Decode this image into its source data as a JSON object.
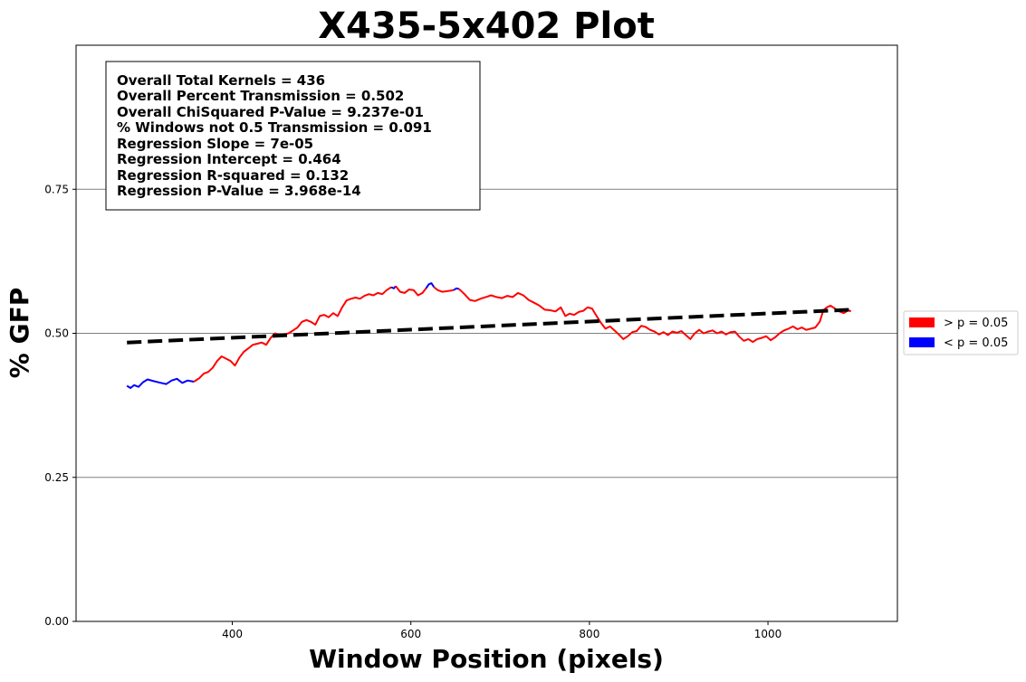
{
  "chart_data": {
    "type": "line",
    "title": "X435-5x402 Plot",
    "xlabel": "Window Position (pixels)",
    "ylabel": "% GFP",
    "xlim": [
      225,
      1145
    ],
    "ylim": [
      0,
      1.0
    ],
    "x_ticks": [
      400,
      600,
      800,
      1000
    ],
    "y_ticks": [
      0.0,
      0.25,
      0.5,
      0.75
    ],
    "x_tick_labels": [
      "400",
      "600",
      "800",
      "1000"
    ],
    "y_tick_labels": [
      "0.00",
      "0.25",
      "0.50",
      "0.75"
    ],
    "y_gridlines": [
      0.25,
      0.5,
      0.75
    ],
    "legend_position": "outside right",
    "legend": [
      {
        "label": "> p = 0.05",
        "color": "#ff0000"
      },
      {
        "label": "< p = 0.05",
        "color": "#0000ff"
      }
    ],
    "stats_box": [
      "Overall Total Kernels = 436",
      "Overall Percent Transmission = 0.502",
      "Overall ChiSquared P-Value = 9.237e-01",
      "% Windows not 0.5 Transmission = 0.091",
      "Regression Slope = 7e-05",
      "Regression Intercept = 0.464",
      "Regression R-squared = 0.132",
      "Regression P-Value = 3.968e-14"
    ],
    "regression": {
      "x": [
        282,
        1093
      ],
      "y": [
        0.484,
        0.541
      ],
      "color": "#000000",
      "style": "dashed"
    },
    "series": [
      {
        "color": "#0000ff",
        "points": [
          [
            282,
            0.409
          ],
          [
            286,
            0.405
          ],
          [
            290,
            0.41
          ],
          [
            295,
            0.407
          ],
          [
            300,
            0.415
          ],
          [
            305,
            0.42
          ],
          [
            312,
            0.417
          ],
          [
            320,
            0.414
          ],
          [
            326,
            0.412
          ],
          [
            332,
            0.418
          ],
          [
            338,
            0.421
          ],
          [
            344,
            0.414
          ],
          [
            350,
            0.418
          ],
          [
            357,
            0.416
          ]
        ]
      },
      {
        "color": "#ff0000",
        "points": [
          [
            357,
            0.416
          ],
          [
            363,
            0.422
          ],
          [
            368,
            0.43
          ],
          [
            373,
            0.433
          ],
          [
            378,
            0.44
          ],
          [
            383,
            0.452
          ],
          [
            388,
            0.46
          ],
          [
            393,
            0.456
          ],
          [
            398,
            0.452
          ],
          [
            403,
            0.444
          ],
          [
            408,
            0.458
          ],
          [
            413,
            0.468
          ],
          [
            418,
            0.474
          ],
          [
            423,
            0.48
          ],
          [
            428,
            0.482
          ],
          [
            433,
            0.484
          ],
          [
            438,
            0.48
          ],
          [
            443,
            0.492
          ],
          [
            448,
            0.5
          ],
          [
            453,
            0.496
          ],
          [
            458,
            0.498
          ],
          [
            463,
            0.5
          ],
          [
            468,
            0.505
          ],
          [
            473,
            0.51
          ],
          [
            478,
            0.52
          ],
          [
            483,
            0.523
          ],
          [
            488,
            0.52
          ],
          [
            493,
            0.515
          ],
          [
            498,
            0.53
          ],
          [
            503,
            0.532
          ],
          [
            508,
            0.528
          ],
          [
            513,
            0.535
          ],
          [
            518,
            0.53
          ],
          [
            523,
            0.545
          ],
          [
            528,
            0.557
          ],
          [
            533,
            0.56
          ],
          [
            538,
            0.562
          ],
          [
            543,
            0.56
          ],
          [
            548,
            0.565
          ],
          [
            553,
            0.568
          ],
          [
            558,
            0.566
          ],
          [
            563,
            0.57
          ],
          [
            568,
            0.568
          ],
          [
            573,
            0.575
          ],
          [
            578,
            0.58
          ]
        ]
      },
      {
        "color": "#0000ff",
        "points": [
          [
            578,
            0.58
          ],
          [
            581,
            0.578
          ],
          [
            583,
            0.582
          ]
        ]
      },
      {
        "color": "#ff0000",
        "points": [
          [
            583,
            0.582
          ],
          [
            588,
            0.572
          ],
          [
            593,
            0.57
          ],
          [
            598,
            0.576
          ],
          [
            603,
            0.575
          ],
          [
            608,
            0.566
          ],
          [
            613,
            0.57
          ],
          [
            617,
            0.578
          ]
        ]
      },
      {
        "color": "#0000ff",
        "points": [
          [
            617,
            0.578
          ],
          [
            620,
            0.585
          ],
          [
            623,
            0.587
          ],
          [
            626,
            0.58
          ]
        ]
      },
      {
        "color": "#ff0000",
        "points": [
          [
            626,
            0.58
          ],
          [
            630,
            0.575
          ],
          [
            635,
            0.572
          ],
          [
            640,
            0.573
          ],
          [
            644,
            0.574
          ],
          [
            648,
            0.575
          ]
        ]
      },
      {
        "color": "#0000ff",
        "points": [
          [
            648,
            0.575
          ],
          [
            651,
            0.578
          ],
          [
            654,
            0.577
          ]
        ]
      },
      {
        "color": "#ff0000",
        "points": [
          [
            654,
            0.577
          ],
          [
            660,
            0.568
          ],
          [
            666,
            0.558
          ],
          [
            672,
            0.556
          ],
          [
            678,
            0.56
          ],
          [
            684,
            0.563
          ],
          [
            690,
            0.566
          ],
          [
            696,
            0.563
          ],
          [
            702,
            0.561
          ],
          [
            708,
            0.565
          ],
          [
            714,
            0.563
          ],
          [
            720,
            0.57
          ],
          [
            726,
            0.566
          ],
          [
            732,
            0.558
          ],
          [
            738,
            0.553
          ],
          [
            744,
            0.548
          ],
          [
            750,
            0.541
          ],
          [
            756,
            0.54
          ],
          [
            762,
            0.538
          ],
          [
            768,
            0.545
          ],
          [
            773,
            0.53
          ],
          [
            778,
            0.534
          ],
          [
            783,
            0.532
          ],
          [
            788,
            0.537
          ],
          [
            793,
            0.539
          ],
          [
            798,
            0.545
          ],
          [
            803,
            0.543
          ],
          [
            808,
            0.53
          ],
          [
            813,
            0.518
          ],
          [
            818,
            0.508
          ],
          [
            823,
            0.512
          ],
          [
            828,
            0.505
          ],
          [
            833,
            0.498
          ],
          [
            838,
            0.49
          ],
          [
            843,
            0.495
          ],
          [
            848,
            0.502
          ],
          [
            853,
            0.504
          ],
          [
            858,
            0.513
          ],
          [
            863,
            0.511
          ],
          [
            868,
            0.506
          ],
          [
            873,
            0.503
          ],
          [
            878,
            0.498
          ],
          [
            883,
            0.502
          ],
          [
            888,
            0.497
          ],
          [
            893,
            0.503
          ],
          [
            898,
            0.501
          ],
          [
            903,
            0.504
          ],
          [
            908,
            0.497
          ],
          [
            913,
            0.49
          ],
          [
            918,
            0.5
          ],
          [
            923,
            0.506
          ],
          [
            928,
            0.5
          ],
          [
            933,
            0.503
          ],
          [
            938,
            0.505
          ],
          [
            943,
            0.5
          ],
          [
            948,
            0.503
          ],
          [
            953,
            0.498
          ],
          [
            958,
            0.502
          ],
          [
            963,
            0.503
          ],
          [
            968,
            0.494
          ],
          [
            973,
            0.487
          ],
          [
            978,
            0.49
          ],
          [
            983,
            0.485
          ],
          [
            988,
            0.49
          ],
          [
            993,
            0.492
          ],
          [
            998,
            0.495
          ],
          [
            1003,
            0.488
          ],
          [
            1008,
            0.493
          ],
          [
            1013,
            0.5
          ],
          [
            1018,
            0.505
          ],
          [
            1023,
            0.508
          ],
          [
            1028,
            0.512
          ],
          [
            1033,
            0.507
          ],
          [
            1038,
            0.51
          ],
          [
            1043,
            0.506
          ],
          [
            1048,
            0.508
          ],
          [
            1053,
            0.51
          ],
          [
            1058,
            0.52
          ],
          [
            1062,
            0.54
          ],
          [
            1066,
            0.545
          ],
          [
            1070,
            0.548
          ],
          [
            1075,
            0.543
          ],
          [
            1080,
            0.538
          ],
          [
            1085,
            0.535
          ],
          [
            1090,
            0.54
          ],
          [
            1093,
            0.538
          ]
        ]
      }
    ]
  }
}
